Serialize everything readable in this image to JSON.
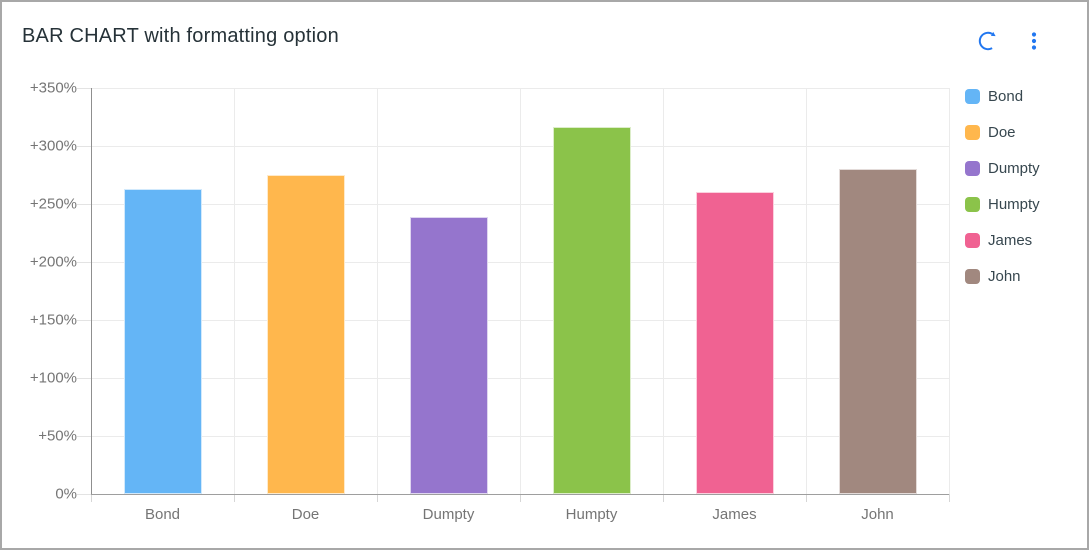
{
  "window": {
    "title": "BAR CHART with formatting option",
    "toolbar": {
      "refresh_icon": "refresh",
      "menu_icon": "more-options"
    }
  },
  "style": {
    "accent_color": "#2277f0",
    "card_border_color": "#a8a8a8",
    "axis_label_color": "#757575",
    "legend_text_color": "#37474f",
    "grid_color": "#ebebeb"
  },
  "chart_data": {
    "type": "bar",
    "title": "BAR CHART with formatting option",
    "categories": [
      "Bond",
      "Doe",
      "Dumpty",
      "Humpty",
      "James",
      "John"
    ],
    "values": [
      263,
      275,
      239,
      316,
      260,
      280
    ],
    "colors": [
      "#64b5f6",
      "#ffb74d",
      "#9575cd",
      "#8bc34a",
      "#f06292",
      "#a1887f"
    ],
    "xlabel": "",
    "ylabel": "",
    "ylim": [
      0,
      350
    ],
    "ytick_step": 50,
    "ytick_labels": [
      "0%",
      "+50%",
      "+100%",
      "+150%",
      "+200%",
      "+250%",
      "+300%",
      "+350%"
    ],
    "grid": true,
    "legend_position": "right"
  }
}
